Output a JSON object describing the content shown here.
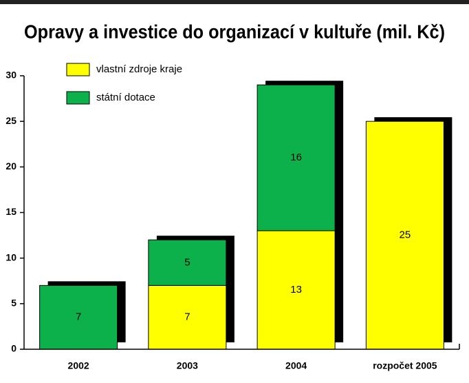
{
  "chart_data": {
    "type": "stacked_bar",
    "title": "Opravy a investice do organizací v kultuře (mil. Kč)",
    "categories": [
      "2002",
      "2003",
      "2004",
      "rozpočet 2005"
    ],
    "series": [
      {
        "name": "vlastní zdroje kraje",
        "color": "#ffff00",
        "values": [
          null,
          7,
          13,
          25
        ]
      },
      {
        "name": "státní dotace",
        "color": "#0db14b",
        "values": [
          7,
          5,
          16,
          null
        ]
      }
    ],
    "ylim": [
      0,
      30
    ],
    "yticks": [
      0,
      5,
      10,
      15,
      20,
      25,
      30
    ],
    "legend": "top-left"
  }
}
